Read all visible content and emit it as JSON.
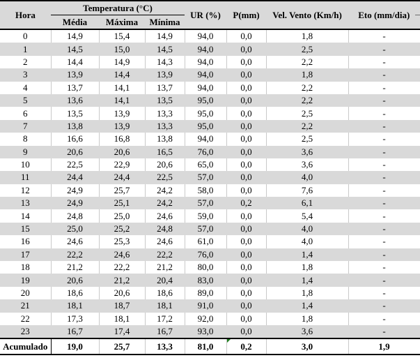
{
  "table": {
    "header": {
      "hora": "Hora",
      "temperatura_group": "Temperatura (°C)",
      "media": "Média",
      "maxima": "Máxima",
      "minima": "Mínima",
      "ur": "UR (%)",
      "p": "P(mm)",
      "vento": "Vel. Vento (Km/h)",
      "eto": "Eto (mm/dia)"
    },
    "rows": [
      [
        "0",
        "14,9",
        "15,4",
        "14,9",
        "94,0",
        "0,0",
        "1,8",
        "-"
      ],
      [
        "1",
        "14,5",
        "15,0",
        "14,5",
        "94,0",
        "0,0",
        "2,5",
        "-"
      ],
      [
        "2",
        "14,4",
        "14,9",
        "14,3",
        "94,0",
        "0,0",
        "2,2",
        "-"
      ],
      [
        "3",
        "13,9",
        "14,4",
        "13,9",
        "94,0",
        "0,0",
        "1,8",
        "-"
      ],
      [
        "4",
        "13,7",
        "14,1",
        "13,7",
        "94,0",
        "0,0",
        "2,2",
        "-"
      ],
      [
        "5",
        "13,6",
        "14,1",
        "13,5",
        "95,0",
        "0,0",
        "2,2",
        "-"
      ],
      [
        "6",
        "13,5",
        "13,9",
        "13,3",
        "95,0",
        "0,0",
        "2,5",
        "-"
      ],
      [
        "7",
        "13,8",
        "13,9",
        "13,3",
        "95,0",
        "0,0",
        "2,2",
        "-"
      ],
      [
        "8",
        "16,6",
        "16,8",
        "13,8",
        "94,0",
        "0,0",
        "2,5",
        "-"
      ],
      [
        "9",
        "20,6",
        "20,6",
        "16,5",
        "76,0",
        "0,0",
        "3,6",
        "-"
      ],
      [
        "10",
        "22,5",
        "22,9",
        "20,6",
        "65,0",
        "0,0",
        "3,6",
        "-"
      ],
      [
        "11",
        "24,4",
        "24,4",
        "22,5",
        "57,0",
        "0,0",
        "4,0",
        "-"
      ],
      [
        "12",
        "24,9",
        "25,7",
        "24,2",
        "58,0",
        "0,0",
        "7,6",
        "-"
      ],
      [
        "13",
        "24,9",
        "25,1",
        "24,2",
        "57,0",
        "0,2",
        "6,1",
        "-"
      ],
      [
        "14",
        "24,8",
        "25,0",
        "24,6",
        "59,0",
        "0,0",
        "5,4",
        "-"
      ],
      [
        "15",
        "25,0",
        "25,2",
        "24,8",
        "57,0",
        "0,0",
        "4,0",
        "-"
      ],
      [
        "16",
        "24,6",
        "25,3",
        "24,6",
        "61,0",
        "0,0",
        "4,0",
        "-"
      ],
      [
        "17",
        "22,2",
        "24,6",
        "22,2",
        "76,0",
        "0,0",
        "1,4",
        "-"
      ],
      [
        "18",
        "21,2",
        "22,2",
        "21,2",
        "80,0",
        "0,0",
        "1,8",
        "-"
      ],
      [
        "19",
        "20,6",
        "21,2",
        "20,4",
        "83,0",
        "0,0",
        "1,4",
        "-"
      ],
      [
        "20",
        "18,6",
        "20,6",
        "18,6",
        "89,0",
        "0,0",
        "1,8",
        "-"
      ],
      [
        "21",
        "18,1",
        "18,7",
        "18,1",
        "91,0",
        "0,0",
        "1,4",
        "-"
      ],
      [
        "22",
        "17,3",
        "18,1",
        "17,2",
        "92,0",
        "0,0",
        "1,8",
        "-"
      ],
      [
        "23",
        "16,7",
        "17,4",
        "16,7",
        "93,0",
        "0,0",
        "3,6",
        "-"
      ]
    ],
    "footer": [
      "Acumulado",
      "19,0",
      "25,7",
      "13,3",
      "81,0",
      "0,2",
      "3,0",
      "1,9"
    ],
    "footer_comment_marker": "green-triangle-on-p-cell"
  },
  "colors": {
    "header_bg": "#d9d9d9",
    "stripe_bg": "#d9d9d9",
    "gridline": "#c9c9c9",
    "rule_black": "#000000",
    "comment_green": "#1e7e1e"
  }
}
